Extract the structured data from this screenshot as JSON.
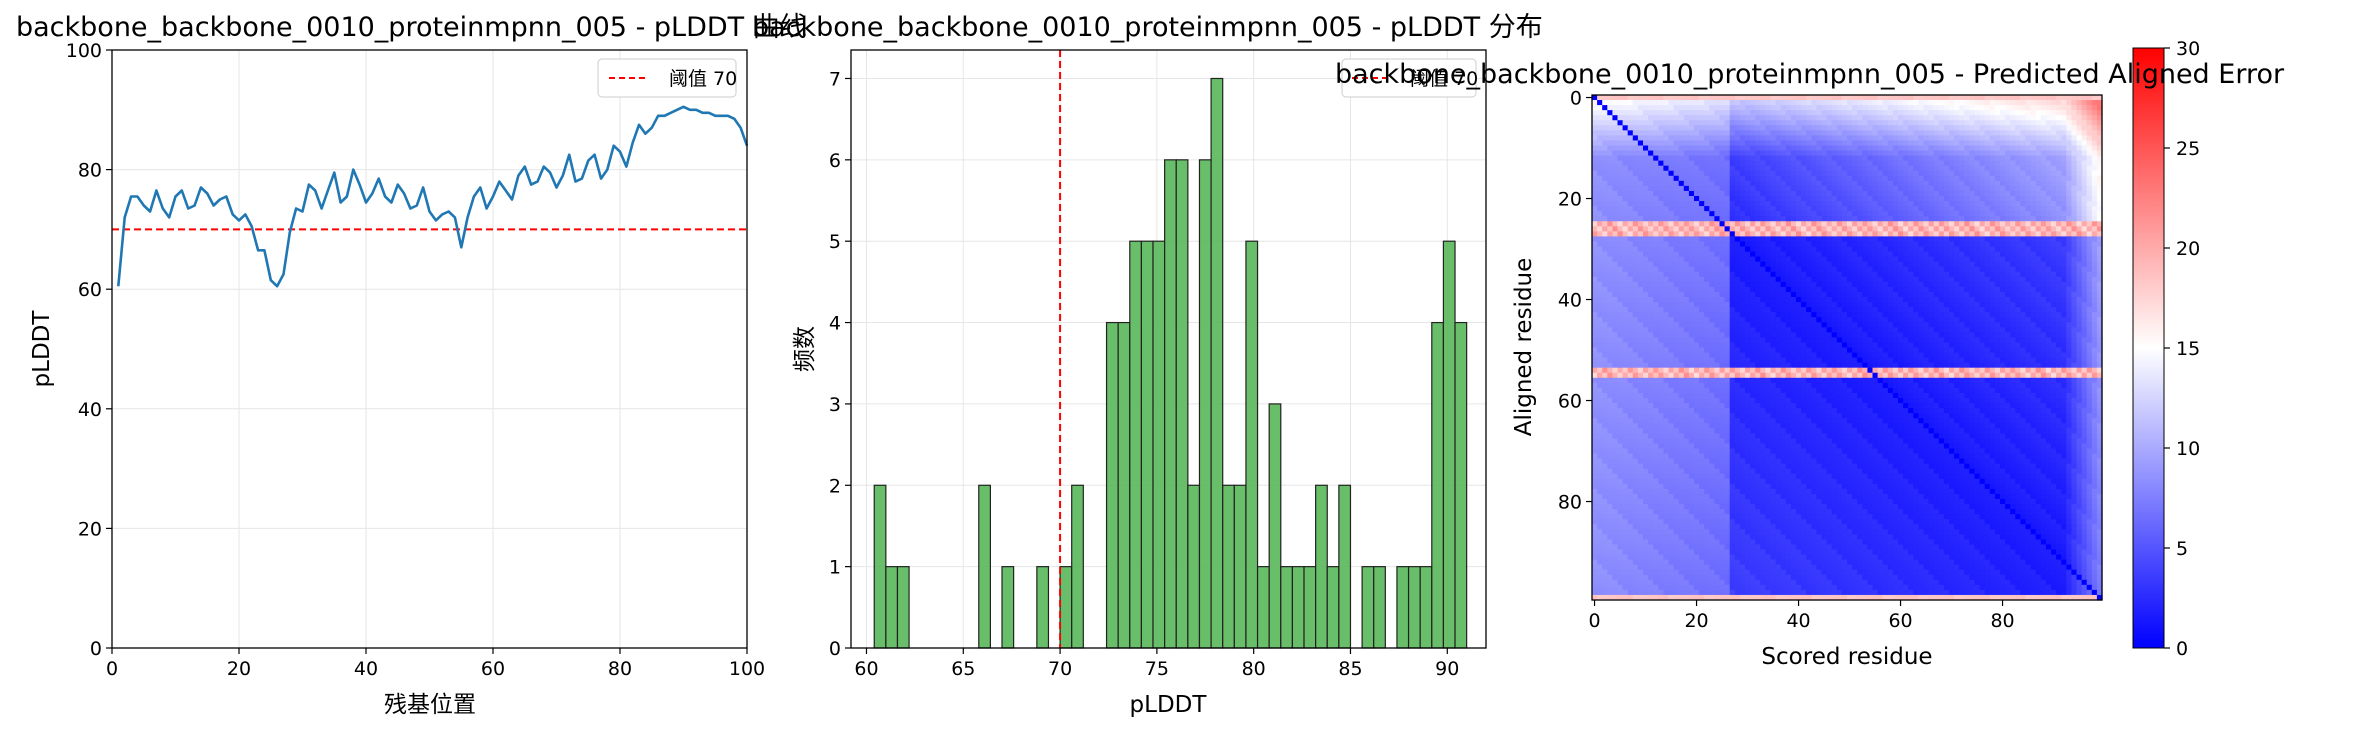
{
  "chart_data": [
    {
      "type": "line",
      "title": "backbone_backbone_0010_proteinmpnn_005 - pLDDT 曲线",
      "xlabel": "残基位置",
      "ylabel": "pLDDT",
      "xlim": [
        0,
        100
      ],
      "ylim": [
        0,
        100
      ],
      "xticks": [
        "0",
        "20",
        "40",
        "60",
        "80",
        "100"
      ],
      "yticks": [
        "0",
        "20",
        "40",
        "60",
        "80",
        "100"
      ],
      "grid": true,
      "legend": {
        "placement": "top-right",
        "entries": [
          "阈值 70"
        ]
      },
      "threshold": 70,
      "series": [
        {
          "color": "#1f77b4",
          "x": [
            1,
            2,
            3,
            4,
            5,
            6,
            7,
            8,
            9,
            10,
            11,
            12,
            13,
            14,
            15,
            16,
            17,
            18,
            19,
            20,
            21,
            22,
            23,
            24,
            25,
            26,
            27,
            28,
            29,
            30,
            31,
            32,
            33,
            34,
            35,
            36,
            37,
            38,
            39,
            40,
            41,
            42,
            43,
            44,
            45,
            46,
            47,
            48,
            49,
            50,
            51,
            52,
            53,
            54,
            55,
            56,
            57,
            58,
            59,
            60,
            61,
            62,
            63,
            64,
            65,
            66,
            67,
            68,
            69,
            70,
            71,
            72,
            73,
            74,
            75,
            76,
            77,
            78,
            79,
            80,
            81,
            82,
            83,
            84,
            85,
            86,
            87,
            88,
            89,
            90,
            91,
            92,
            93,
            94,
            95,
            96,
            97,
            98,
            99,
            100
          ],
          "y": [
            60.5,
            72,
            75.5,
            75.5,
            74,
            73,
            76.5,
            73.5,
            72,
            75.5,
            76.5,
            73.5,
            74,
            77,
            76,
            74,
            75,
            75.5,
            72.5,
            71.5,
            72.5,
            70.5,
            66.5,
            66.5,
            61.5,
            60.5,
            62.5,
            69.5,
            73.5,
            73,
            77.5,
            76.5,
            73.5,
            76.5,
            79.5,
            74.5,
            75.5,
            80,
            77.5,
            74.5,
            76,
            78.5,
            75.5,
            74.5,
            77.5,
            76,
            73.5,
            74,
            77,
            73,
            71.5,
            72.5,
            73,
            72,
            67,
            72,
            75.5,
            77,
            73.5,
            75.5,
            78,
            76.5,
            75,
            79,
            80.5,
            77.5,
            78,
            80.5,
            79.5,
            77,
            79,
            82.5,
            78,
            78.5,
            81.5,
            82.5,
            78.5,
            80,
            84,
            83,
            80.5,
            84.5,
            87.5,
            86,
            87,
            89,
            89,
            89.5,
            90,
            90.5,
            90,
            90,
            89.5,
            89.5,
            89,
            89,
            89,
            88.5,
            87,
            84
          ]
        }
      ]
    },
    {
      "type": "bar",
      "title": "backbone_backbone_0010_proteinmpnn_005 - pLDDT 分布",
      "xlabel": "pLDDT",
      "ylabel": "频数",
      "xlim": [
        59.2,
        92.0
      ],
      "ylim": [
        0,
        7.35
      ],
      "xticks": [
        "60",
        "65",
        "70",
        "75",
        "80",
        "85",
        "90"
      ],
      "yticks": [
        "0",
        "1",
        "2",
        "3",
        "4",
        "5",
        "6",
        "7"
      ],
      "grid": true,
      "legend": {
        "placement": "top-right",
        "entries": [
          "阈值 70"
        ]
      },
      "threshold": 70,
      "bin_start": 60.4,
      "bin_width": 0.6,
      "values": [
        2,
        1,
        1,
        0,
        0,
        0,
        0,
        0,
        0,
        2,
        0,
        1,
        0,
        0,
        1,
        0,
        1,
        2,
        0,
        0,
        4,
        4,
        5,
        5,
        5,
        6,
        6,
        2,
        6,
        7,
        2,
        2,
        5,
        1,
        3,
        1,
        1,
        1,
        2,
        1,
        2,
        0,
        1,
        1,
        0,
        1,
        1,
        1,
        4,
        5,
        4
      ],
      "color": "#5cb85c"
    },
    {
      "type": "heatmap",
      "title": "backbone_backbone_0010_proteinmpnn_005 - Predicted Aligned Error",
      "xlabel": "Scored residue",
      "ylabel": "Aligned residue",
      "size": 100,
      "xticks": [
        "0",
        "20",
        "40",
        "60",
        "80"
      ],
      "yticks": [
        "0",
        "20",
        "40",
        "60",
        "80"
      ],
      "colorbar": {
        "min": 0,
        "max": 30,
        "ticks": [
          "0",
          "5",
          "10",
          "15",
          "20",
          "25",
          "30"
        ],
        "colors": [
          "#0000ff",
          "#ffffff",
          "#ff0000"
        ]
      },
      "bright_rows": [
        25,
        26,
        27,
        54,
        55,
        99
      ],
      "dark_block": [
        27,
        99
      ]
    }
  ]
}
